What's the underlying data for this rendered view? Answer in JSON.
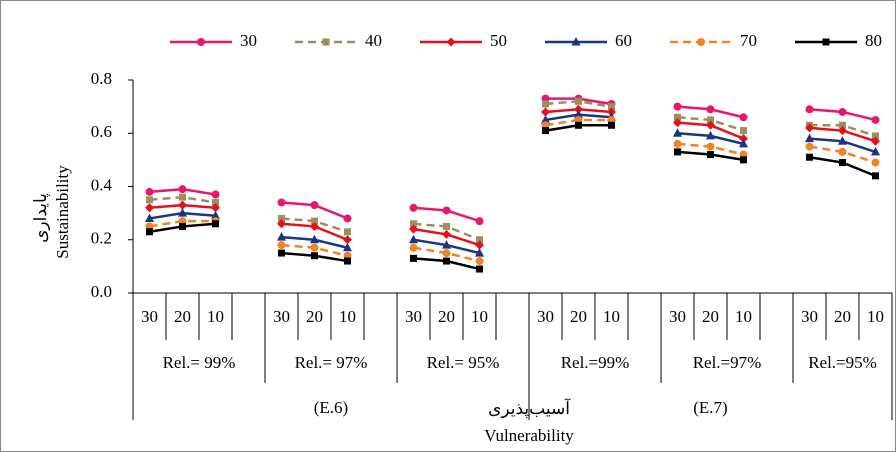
{
  "chart_data": {
    "type": "line",
    "categories": [
      "30",
      "20",
      "10",
      null,
      "30",
      "20",
      "10",
      null,
      "30",
      "20",
      "10",
      null,
      "30",
      "20",
      "10",
      null,
      "30",
      "20",
      "10",
      null,
      "30",
      "20",
      "10"
    ],
    "group_labels": [
      "Rel.= 99%",
      "Rel.= 97%",
      "Rel.= 95%",
      "Rel.=99%",
      "Rel.=97%",
      "Rel.=95%"
    ],
    "super_group_labels": [
      "(E.6)",
      "(E.7)"
    ],
    "x_label_fa": "آسیب‌پذیری",
    "x_label": "Vulnerability",
    "y_label_fa": "پایداری",
    "y_label": "Sustainability",
    "ylim": [
      0,
      0.8
    ],
    "yticks": [
      {
        "value": 0,
        "label": "0.0"
      },
      0.2,
      0.4,
      0.6,
      0.8
    ],
    "grid": false,
    "legend": "top",
    "series": [
      {
        "name": "30",
        "color": "#e8176e",
        "marker": "circle",
        "dashed": false,
        "values": [
          0.38,
          0.39,
          0.37,
          null,
          0.34,
          0.33,
          0.28,
          null,
          0.32,
          0.31,
          0.27,
          null,
          0.73,
          0.73,
          0.71,
          null,
          0.7,
          0.69,
          0.66,
          null,
          0.69,
          0.68,
          0.65
        ]
      },
      {
        "name": "40",
        "color": "#9c8f5e",
        "marker": "square",
        "dashed": true,
        "values": [
          0.35,
          0.36,
          0.34,
          null,
          0.28,
          0.27,
          0.23,
          null,
          0.26,
          0.25,
          0.2,
          null,
          0.71,
          0.72,
          0.7,
          null,
          0.66,
          0.65,
          0.61,
          null,
          0.63,
          0.63,
          0.59
        ]
      },
      {
        "name": "50",
        "color": "#e3111b",
        "marker": "diamond",
        "dashed": false,
        "values": [
          0.32,
          0.33,
          0.32,
          null,
          0.26,
          0.25,
          0.2,
          null,
          0.24,
          0.22,
          0.18,
          null,
          0.68,
          0.69,
          0.68,
          null,
          0.64,
          0.63,
          0.58,
          null,
          0.62,
          0.61,
          0.57
        ]
      },
      {
        "name": "60",
        "color": "#1c3486",
        "marker": "triangle",
        "dashed": false,
        "values": [
          0.28,
          0.3,
          0.29,
          null,
          0.21,
          0.2,
          0.17,
          null,
          0.2,
          0.18,
          0.15,
          null,
          0.65,
          0.67,
          0.66,
          null,
          0.6,
          0.59,
          0.56,
          null,
          0.58,
          0.57,
          0.53
        ]
      },
      {
        "name": "70",
        "color": "#f28322",
        "marker": "circle",
        "dashed": true,
        "values": [
          0.25,
          0.27,
          0.27,
          null,
          0.18,
          0.17,
          0.14,
          null,
          0.17,
          0.15,
          0.12,
          null,
          0.63,
          0.65,
          0.65,
          null,
          0.56,
          0.55,
          0.52,
          null,
          0.55,
          0.53,
          0.49
        ]
      },
      {
        "name": "80",
        "color": "#000000",
        "marker": "square",
        "dashed": false,
        "values": [
          0.23,
          0.25,
          0.26,
          null,
          0.15,
          0.14,
          0.12,
          null,
          0.13,
          0.12,
          0.09,
          null,
          0.61,
          0.63,
          0.63,
          null,
          0.53,
          0.52,
          0.5,
          null,
          0.51,
          0.49,
          0.44
        ]
      }
    ]
  }
}
